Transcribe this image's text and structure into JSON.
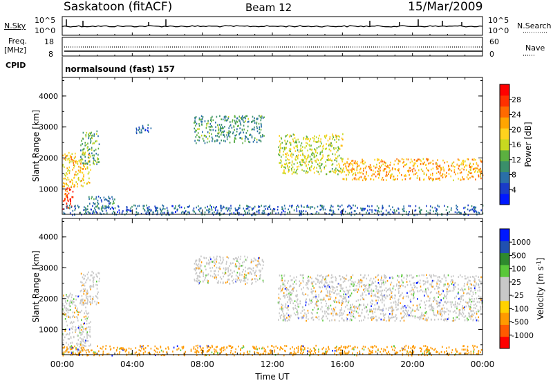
{
  "header": {
    "station": "Saskatoon (fitACF)",
    "beam": "Beam 12",
    "date": "15/Mar/2009"
  },
  "strips": {
    "nsky_label": "N.Sky",
    "nsky_ticks": [
      "10^5",
      "10^0"
    ],
    "nsearch_label": "N.Search",
    "freq_label_1": "Freq.",
    "freq_label_2": "[MHz]",
    "freq_ticks": [
      "18",
      "8"
    ],
    "nave_label": "Nave",
    "nave_ticks": [
      "60",
      "0"
    ],
    "cpid_label": "CPID",
    "cpid_value": "normalsound (fast) 157"
  },
  "colors": {
    "power_scale": [
      "#0018ff",
      "#1a3cc8",
      "#2a6fa8",
      "#3a8f6a",
      "#5cb040",
      "#c8d820",
      "#ffd21e",
      "#ffa500",
      "#ff6a00",
      "#ff3000",
      "#ff0000"
    ],
    "velocity_scale": [
      "#ff0000",
      "#ff5a00",
      "#ff9a00",
      "#ffd200",
      "#c8c8c8",
      "#c8c8c8",
      "#5ac83a",
      "#2e8a2e",
      "#2050b0",
      "#0018ff"
    ],
    "ground_scatter": "#c8c8c8"
  },
  "chart_data": [
    {
      "type": "heatmap",
      "title": "",
      "xlabel": "Time UT",
      "ylabel": "Slant Range [km]",
      "xlim": [
        "00:00",
        "00:00"
      ],
      "xticks": [
        "00:00",
        "04:00",
        "08:00",
        "12:00",
        "16:00",
        "20:00",
        "00:00"
      ],
      "ylim": [
        180,
        4600
      ],
      "yticks": [
        1000,
        2000,
        3000,
        4000
      ],
      "colorbar": {
        "label": "Power [dB]",
        "range": [
          0,
          32
        ],
        "ticks": [
          4,
          8,
          12,
          16,
          20,
          24,
          28
        ]
      },
      "regions": [
        {
          "t": [
            0.0,
            0.6
          ],
          "r": [
            300,
            1100
          ],
          "value": 28
        },
        {
          "t": [
            0.0,
            1.6
          ],
          "r": [
            1100,
            2200
          ],
          "value": 20
        },
        {
          "t": [
            1.0,
            2.1
          ],
          "r": [
            1800,
            2900
          ],
          "value": 12
        },
        {
          "t": [
            1.5,
            3.0
          ],
          "r": [
            400,
            800
          ],
          "value": 8
        },
        {
          "t": [
            4.2,
            5.2
          ],
          "r": [
            2800,
            3100
          ],
          "value": 6
        },
        {
          "t": [
            7.5,
            11.5
          ],
          "r": [
            2500,
            3400
          ],
          "value": 10
        },
        {
          "t": [
            12.3,
            16.0
          ],
          "r": [
            1500,
            2800
          ],
          "value": 16
        },
        {
          "t": [
            16.0,
            24.0
          ],
          "r": [
            1300,
            2000
          ],
          "value": 22
        },
        {
          "t": [
            0.0,
            24.0
          ],
          "r": [
            180,
            500
          ],
          "value": 6
        }
      ]
    },
    {
      "type": "heatmap",
      "title": "",
      "xlabel": "Time UT",
      "ylabel": "Slant Range [km]",
      "xlim": [
        "00:00",
        "00:00"
      ],
      "xticks": [
        "00:00",
        "04:00",
        "08:00",
        "12:00",
        "16:00",
        "20:00",
        "00:00"
      ],
      "ylim": [
        180,
        4600
      ],
      "yticks": [
        1000,
        2000,
        3000,
        4000
      ],
      "colorbar": {
        "label": "Velocity [m s^-1]",
        "ticks": [
          1000,
          500,
          100,
          25,
          -25,
          -100,
          -500,
          -1000
        ]
      },
      "regions": [
        {
          "t": [
            0.0,
            1.6
          ],
          "r": [
            300,
            2200
          ],
          "value": 0
        },
        {
          "t": [
            1.0,
            2.1
          ],
          "r": [
            1800,
            2900
          ],
          "value": 0
        },
        {
          "t": [
            7.5,
            11.5
          ],
          "r": [
            2500,
            3400
          ],
          "value": 0
        },
        {
          "t": [
            12.3,
            24.0
          ],
          "r": [
            1300,
            2800
          ],
          "value": 0
        },
        {
          "t": [
            0.0,
            24.0
          ],
          "r": [
            180,
            500
          ],
          "value": -100
        }
      ]
    }
  ]
}
